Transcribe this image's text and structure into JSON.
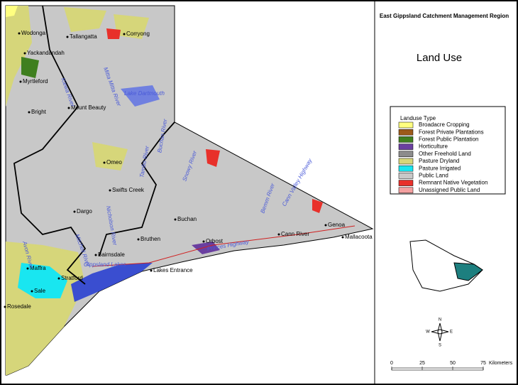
{
  "header": {
    "region": "East Gippsland Catchment Management Region",
    "title": "Land Use"
  },
  "legend": {
    "title": "Landuse Type",
    "items": [
      {
        "label": "Broadacre Cropping",
        "color": "#ffff80"
      },
      {
        "label": "Forest Private Plantations",
        "color": "#9c5a1a"
      },
      {
        "label": "Forest Public Plantation",
        "color": "#3f7f1f"
      },
      {
        "label": "Horticulture",
        "color": "#6a3fa0"
      },
      {
        "label": "Other Freehold Land",
        "color": "#8c8c8c"
      },
      {
        "label": "Pasture Dryland",
        "color": "#d6d67a"
      },
      {
        "label": "Pasture Irrigated",
        "color": "#19e6f0"
      },
      {
        "label": "Public Land",
        "color": "#c8c8c8"
      },
      {
        "label": "Remnant Native Vegetation",
        "color": "#e8302a"
      },
      {
        "label": "Unassigned Public Land",
        "color": "#f4a0a0"
      }
    ]
  },
  "places": [
    "Wodonga",
    "Tallangatta",
    "Corryong",
    "Yackandandah",
    "Myrtleford",
    "Mount Beauty",
    "Bright",
    "Omeo",
    "Swifts Creek",
    "Dargo",
    "Buchan",
    "Bruthen",
    "Bairnsdale",
    "Orbost",
    "Cann River",
    "Genoa",
    "Mallacoota",
    "Maffra",
    "Stratford",
    "Sale",
    "Rosedale",
    "Lakes Entrance"
  ],
  "water_labels": [
    "Lake Dartmouth",
    "Mitta Mitta River",
    "Kiewa River",
    "Buchan River",
    "Snowy River",
    "Tambo River",
    "Nicholson River",
    "Mitchell River",
    "Avon River",
    "Bemm River",
    "Gippsland Lakes",
    "Princes Highway",
    "Cann Valley Highway"
  ],
  "scale": {
    "ticks": [
      0,
      25,
      50,
      75
    ],
    "unit": "Kilometers"
  },
  "compass": {
    "n": "N",
    "e": "E",
    "s": "S",
    "w": "W"
  }
}
